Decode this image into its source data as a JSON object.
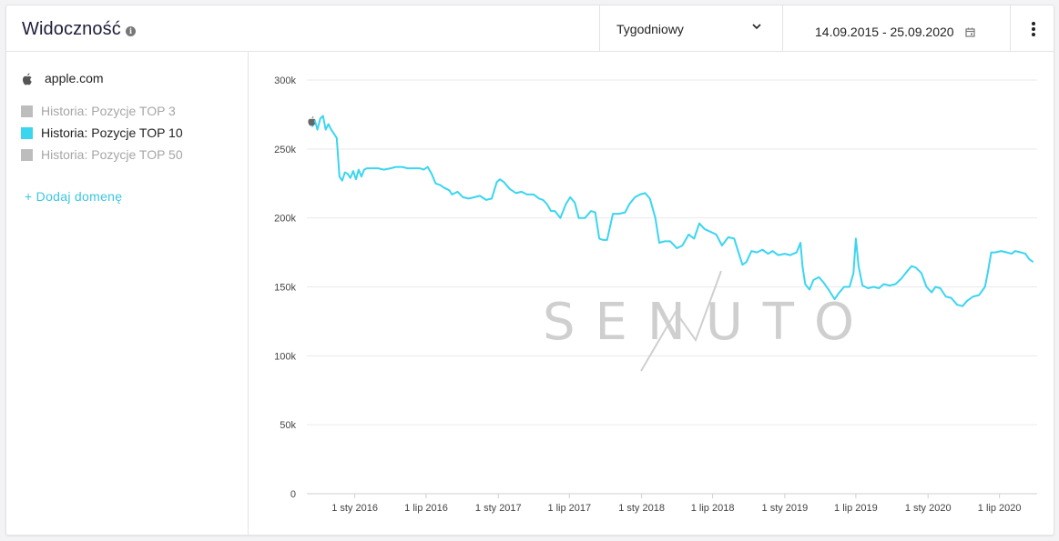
{
  "header": {
    "title": "Widoczność",
    "frequency": "Tygodniowy",
    "date_range": "14.09.2015 - 25.09.2020"
  },
  "sidebar": {
    "domain": "apple.com",
    "series": [
      {
        "label": "Historia: Pozycje TOP 3",
        "color": "#bdbdbd",
        "active": false
      },
      {
        "label": "Historia: Pozycje TOP 10",
        "color": "#3bd5f0",
        "active": true
      },
      {
        "label": "Historia: Pozycje TOP 50",
        "color": "#bdbdbd",
        "active": false
      }
    ],
    "add_domain": "+ Dodaj domenę"
  },
  "watermark": "SENUTO",
  "chart_data": {
    "type": "line",
    "series_name": "Historia: Pozycje TOP 10",
    "color": "#3bd5f0",
    "ylim": [
      0,
      300000
    ],
    "y_ticks": [
      "0",
      "50k",
      "100k",
      "150k",
      "200k",
      "250k",
      "300k"
    ],
    "x_ticks": [
      "1 sty 2016",
      "1 lip 2016",
      "1 sty 2017",
      "1 lip 2017",
      "1 sty 2018",
      "1 lip 2018",
      "1 sty 2019",
      "1 lip 2019",
      "1 sty 2020",
      "1 lip 2020"
    ],
    "x_tick_dates": [
      "2016-01-01",
      "2016-07-01",
      "2017-01-01",
      "2017-07-01",
      "2018-01-01",
      "2018-07-01",
      "2019-01-01",
      "2019-07-01",
      "2020-01-01",
      "2020-07-01"
    ],
    "grid": true,
    "points": [
      [
        "2015-09-14",
        266000
      ],
      [
        "2015-09-21",
        271000
      ],
      [
        "2015-09-28",
        264000
      ],
      [
        "2015-10-05",
        272000
      ],
      [
        "2015-10-12",
        274000
      ],
      [
        "2015-10-19",
        264000
      ],
      [
        "2015-10-26",
        268000
      ],
      [
        "2015-11-02",
        264000
      ],
      [
        "2015-11-09",
        261000
      ],
      [
        "2015-11-16",
        258000
      ],
      [
        "2015-11-23",
        230000
      ],
      [
        "2015-11-30",
        227000
      ],
      [
        "2015-12-07",
        233000
      ],
      [
        "2015-12-14",
        232000
      ],
      [
        "2015-12-21",
        229000
      ],
      [
        "2015-12-28",
        234000
      ],
      [
        "2016-01-04",
        228000
      ],
      [
        "2016-01-11",
        235000
      ],
      [
        "2016-01-18",
        230000
      ],
      [
        "2016-01-25",
        235000
      ],
      [
        "2016-02-01",
        236000
      ],
      [
        "2016-02-15",
        236000
      ],
      [
        "2016-03-01",
        236000
      ],
      [
        "2016-03-15",
        235000
      ],
      [
        "2016-04-01",
        236000
      ],
      [
        "2016-04-15",
        237000
      ],
      [
        "2016-05-01",
        237000
      ],
      [
        "2016-05-15",
        236000
      ],
      [
        "2016-06-01",
        236000
      ],
      [
        "2016-06-15",
        236000
      ],
      [
        "2016-06-25",
        235000
      ],
      [
        "2016-07-05",
        237000
      ],
      [
        "2016-07-15",
        232000
      ],
      [
        "2016-07-25",
        225000
      ],
      [
        "2016-08-05",
        224000
      ],
      [
        "2016-08-15",
        222000
      ],
      [
        "2016-08-29",
        220000
      ],
      [
        "2016-09-05",
        217000
      ],
      [
        "2016-09-19",
        219000
      ],
      [
        "2016-10-03",
        215000
      ],
      [
        "2016-10-17",
        214000
      ],
      [
        "2016-11-01",
        215000
      ],
      [
        "2016-11-15",
        216000
      ],
      [
        "2016-12-01",
        213000
      ],
      [
        "2016-12-15",
        214000
      ],
      [
        "2016-12-28",
        226000
      ],
      [
        "2017-01-05",
        228000
      ],
      [
        "2017-01-15",
        226000
      ],
      [
        "2017-01-30",
        221000
      ],
      [
        "2017-02-15",
        218000
      ],
      [
        "2017-03-01",
        219000
      ],
      [
        "2017-03-15",
        217000
      ],
      [
        "2017-04-01",
        217000
      ],
      [
        "2017-04-15",
        214000
      ],
      [
        "2017-04-25",
        213000
      ],
      [
        "2017-05-05",
        210000
      ],
      [
        "2017-05-15",
        205000
      ],
      [
        "2017-05-25",
        205000
      ],
      [
        "2017-06-08",
        200000
      ],
      [
        "2017-06-22",
        210000
      ],
      [
        "2017-07-03",
        215000
      ],
      [
        "2017-07-15",
        211000
      ],
      [
        "2017-07-25",
        200000
      ],
      [
        "2017-08-10",
        200000
      ],
      [
        "2017-08-25",
        205000
      ],
      [
        "2017-09-05",
        204000
      ],
      [
        "2017-09-15",
        185000
      ],
      [
        "2017-09-25",
        184000
      ],
      [
        "2017-10-05",
        184000
      ],
      [
        "2017-10-20",
        203000
      ],
      [
        "2017-11-05",
        203000
      ],
      [
        "2017-11-20",
        204000
      ],
      [
        "2017-12-01",
        210000
      ],
      [
        "2017-12-15",
        215000
      ],
      [
        "2017-12-28",
        217000
      ],
      [
        "2018-01-10",
        218000
      ],
      [
        "2018-01-22",
        214000
      ],
      [
        "2018-02-05",
        200000
      ],
      [
        "2018-02-15",
        182000
      ],
      [
        "2018-03-01",
        183000
      ],
      [
        "2018-03-15",
        183000
      ],
      [
        "2018-04-01",
        178000
      ],
      [
        "2018-04-15",
        180000
      ],
      [
        "2018-05-01",
        188000
      ],
      [
        "2018-05-15",
        185000
      ],
      [
        "2018-05-28",
        196000
      ],
      [
        "2018-06-10",
        192000
      ],
      [
        "2018-06-25",
        190000
      ],
      [
        "2018-07-10",
        188000
      ],
      [
        "2018-07-25",
        180000
      ],
      [
        "2018-08-10",
        186000
      ],
      [
        "2018-08-25",
        185000
      ],
      [
        "2018-09-05",
        175000
      ],
      [
        "2018-09-15",
        166000
      ],
      [
        "2018-09-25",
        168000
      ],
      [
        "2018-10-08",
        176000
      ],
      [
        "2018-10-22",
        175000
      ],
      [
        "2018-11-05",
        177000
      ],
      [
        "2018-11-19",
        174000
      ],
      [
        "2018-12-01",
        176000
      ],
      [
        "2018-12-15",
        173000
      ],
      [
        "2019-01-01",
        174000
      ],
      [
        "2019-01-15",
        173000
      ],
      [
        "2019-01-31",
        175000
      ],
      [
        "2019-02-10",
        182000
      ],
      [
        "2019-02-15",
        165000
      ],
      [
        "2019-02-22",
        152000
      ],
      [
        "2019-03-05",
        148000
      ],
      [
        "2019-03-15",
        155000
      ],
      [
        "2019-03-29",
        157000
      ],
      [
        "2019-04-10",
        153000
      ],
      [
        "2019-04-25",
        147000
      ],
      [
        "2019-05-08",
        141000
      ],
      [
        "2019-05-20",
        146000
      ],
      [
        "2019-06-01",
        150000
      ],
      [
        "2019-06-15",
        150000
      ],
      [
        "2019-06-25",
        160000
      ],
      [
        "2019-07-01",
        185000
      ],
      [
        "2019-07-08",
        165000
      ],
      [
        "2019-07-18",
        151000
      ],
      [
        "2019-08-01",
        149000
      ],
      [
        "2019-08-15",
        150000
      ],
      [
        "2019-08-29",
        149000
      ],
      [
        "2019-09-10",
        152000
      ],
      [
        "2019-09-25",
        151000
      ],
      [
        "2019-10-10",
        152000
      ],
      [
        "2019-10-25",
        156000
      ],
      [
        "2019-11-05",
        160000
      ],
      [
        "2019-11-20",
        165000
      ],
      [
        "2019-12-01",
        164000
      ],
      [
        "2019-12-15",
        160000
      ],
      [
        "2019-12-28",
        150000
      ],
      [
        "2020-01-10",
        146000
      ],
      [
        "2020-01-20",
        150000
      ],
      [
        "2020-02-01",
        149000
      ],
      [
        "2020-02-15",
        143000
      ],
      [
        "2020-02-29",
        142000
      ],
      [
        "2020-03-15",
        137000
      ],
      [
        "2020-03-29",
        136000
      ],
      [
        "2020-04-10",
        140000
      ],
      [
        "2020-04-25",
        143000
      ],
      [
        "2020-05-10",
        144000
      ],
      [
        "2020-05-25",
        150000
      ],
      [
        "2020-06-01",
        160000
      ],
      [
        "2020-06-10",
        175000
      ],
      [
        "2020-06-20",
        175000
      ],
      [
        "2020-07-05",
        176000
      ],
      [
        "2020-07-20",
        175000
      ],
      [
        "2020-08-01",
        174000
      ],
      [
        "2020-08-10",
        176000
      ],
      [
        "2020-08-25",
        175000
      ],
      [
        "2020-09-05",
        174000
      ],
      [
        "2020-09-15",
        170000
      ],
      [
        "2020-09-25",
        168000
      ]
    ]
  }
}
